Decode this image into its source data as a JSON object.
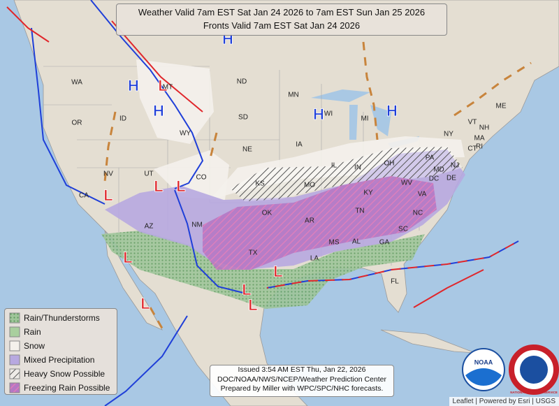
{
  "header": {
    "lines": [
      "Weather Valid 7am EST Sat Jan 24 2026 to 7am EST Sun Jan 25 2026",
      "Fronts Valid 7am EST Sat Jan 24 2026"
    ]
  },
  "legend": {
    "items": [
      "Rain/Thunderstorms",
      "Rain",
      "Snow",
      "Mixed Precipitation",
      "Heavy Snow Possible",
      "Freezing Rain Possible"
    ]
  },
  "states": [
    "WA",
    "OR",
    "ID",
    "MT",
    "WY",
    "NV",
    "UT",
    "CO",
    "AZ",
    "NM",
    "ND",
    "SD",
    "NE",
    "KS",
    "OK",
    "TX",
    "MN",
    "IA",
    "MO",
    "AR",
    "LA",
    "WI",
    "IL",
    "MS",
    "MI",
    "IN",
    "KY",
    "TN",
    "AL",
    "OH",
    "WV",
    "GA",
    "FL",
    "PA",
    "VA",
    "NC",
    "SC",
    "NY",
    "MD",
    "DE",
    "DC",
    "NJ",
    "CT",
    "RI",
    "MA",
    "VT",
    "NH",
    "ME",
    "CA"
  ],
  "pressure_centers": [
    "H",
    "H",
    "H",
    "H",
    "H",
    "L",
    "L",
    "L",
    "L",
    "L",
    "L",
    "L",
    "L",
    "L"
  ],
  "issued": {
    "lines": [
      "Issued  3:54 AM EST Thu, Jan 22, 2026",
      "DOC/NOAA/NWS/NCEP/Weather Prediction Center",
      "Prepared by Miller with WPC/SPC/NHC forecasts."
    ]
  },
  "logos": {
    "noaa": "NOAA",
    "nws": "NATIONAL WEATHER SERVICE"
  },
  "attribution": "Leaflet | Powered by Esri | USGS"
}
